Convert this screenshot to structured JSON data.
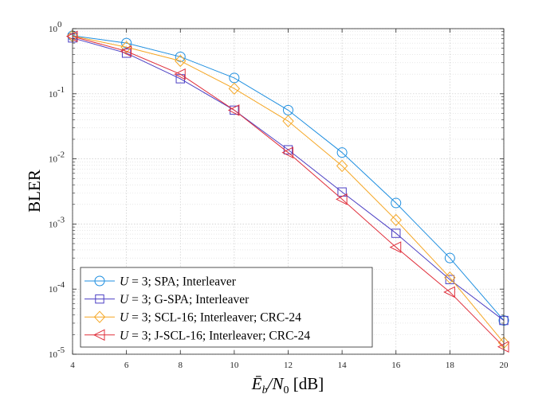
{
  "chart_data": {
    "type": "line",
    "xlabel": "Ē_b/N_0 [dB]",
    "xlabel_parts": {
      "var": "Ē",
      "sub1": "b",
      "sep": "/N",
      "sub2": "0",
      "unit": " [dB]"
    },
    "ylabel": "BLER",
    "xlim": [
      4,
      20
    ],
    "ylim": [
      1e-05,
      1
    ],
    "yscale": "log",
    "grid": true,
    "legend": "lower-left",
    "x_ticks": [
      4,
      6,
      8,
      10,
      12,
      14,
      16,
      18,
      20
    ],
    "y_ticks": [
      {
        "value": 1,
        "base": "10",
        "exp": "0"
      },
      {
        "value": 0.1,
        "base": "10",
        "exp": "-1"
      },
      {
        "value": 0.01,
        "base": "10",
        "exp": "-2"
      },
      {
        "value": 0.001,
        "base": "10",
        "exp": "-3"
      },
      {
        "value": 0.0001,
        "base": "10",
        "exp": "-4"
      },
      {
        "value": 1e-05,
        "base": "10",
        "exp": "-5"
      }
    ],
    "x": [
      4,
      6,
      8,
      10,
      12,
      14,
      16,
      18,
      20
    ],
    "series": [
      {
        "name": "U = 3; SPA; Interleaver",
        "legend_var": "U",
        "legend_rest": " = 3; SPA; Interleaver",
        "color": "#1f8fe0",
        "marker": "circle",
        "values": [
          0.78,
          0.6,
          0.37,
          0.175,
          0.056,
          0.0125,
          0.0021,
          0.0003,
          3.3e-05
        ]
      },
      {
        "name": "U = 3; G-SPA; Interleaver",
        "legend_var": "U",
        "legend_rest": " = 3; G-SPA; Interleaver",
        "color": "#4b3fc4",
        "marker": "square",
        "values": [
          0.72,
          0.42,
          0.17,
          0.056,
          0.0138,
          0.0031,
          0.00072,
          0.00014,
          3.3e-05
        ]
      },
      {
        "name": "U = 3; SCL-16; Interleaver; CRC-24",
        "legend_var": "U",
        "legend_rest": " = 3; SCL-16; Interleaver; CRC-24",
        "color": "#f5a623",
        "marker": "diamond",
        "values": [
          0.77,
          0.52,
          0.32,
          0.12,
          0.038,
          0.0078,
          0.00115,
          0.00015,
          1.5e-05
        ]
      },
      {
        "name": "U = 3; J-SCL-16; Interleaver; CRC-24",
        "legend_var": "U",
        "legend_rest": " = 3; J-SCL-16; Interleaver; CRC-24",
        "color": "#e0303c",
        "marker": "triangle-left",
        "values": [
          0.76,
          0.45,
          0.2,
          0.056,
          0.0125,
          0.0024,
          0.00044,
          9e-05,
          1.3e-05
        ]
      }
    ]
  }
}
